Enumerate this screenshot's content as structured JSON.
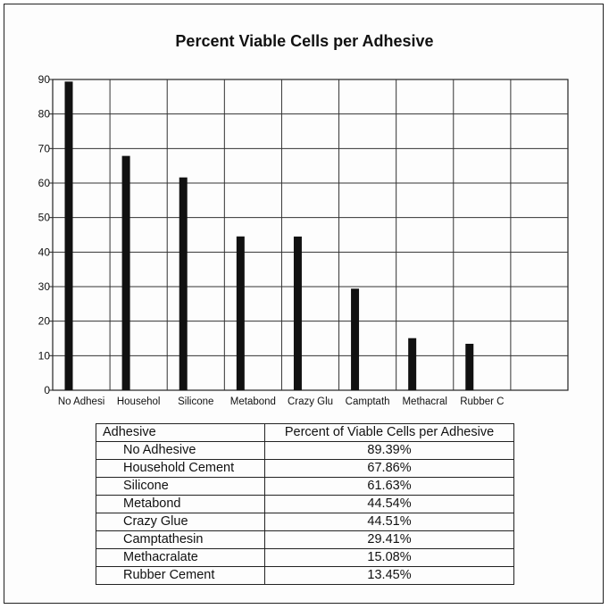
{
  "chart_data": {
    "type": "bar",
    "title": "Percent Viable Cells per Adhesive",
    "categories": [
      "No Adhesi",
      "Househol",
      "Silicone",
      "Metabond",
      "Crazy Glu",
      "Camptath",
      "Methacral",
      "Rubber C"
    ],
    "values": [
      89.39,
      67.86,
      61.63,
      44.54,
      44.51,
      29.41,
      15.08,
      13.45
    ],
    "ylim": [
      0,
      90
    ],
    "yticks": [
      0,
      10,
      20,
      30,
      40,
      50,
      60,
      70,
      80,
      90
    ],
    "grid": true,
    "xlabel": "",
    "ylabel": "",
    "bar_color": "#111111",
    "total_slots": 9
  },
  "table": {
    "headers": [
      "Adhesive",
      "Percent of Viable Cells per Adhesive"
    ],
    "rows": [
      [
        "No Adhesive",
        "89.39%"
      ],
      [
        "Household Cement",
        "67.86%"
      ],
      [
        "Silicone",
        "61.63%"
      ],
      [
        "Metabond",
        "44.54%"
      ],
      [
        "Crazy Glue",
        "44.51%"
      ],
      [
        "Camptathesin",
        "29.41%"
      ],
      [
        "Methacralate",
        "15.08%"
      ],
      [
        "Rubber Cement",
        "13.45%"
      ]
    ]
  }
}
